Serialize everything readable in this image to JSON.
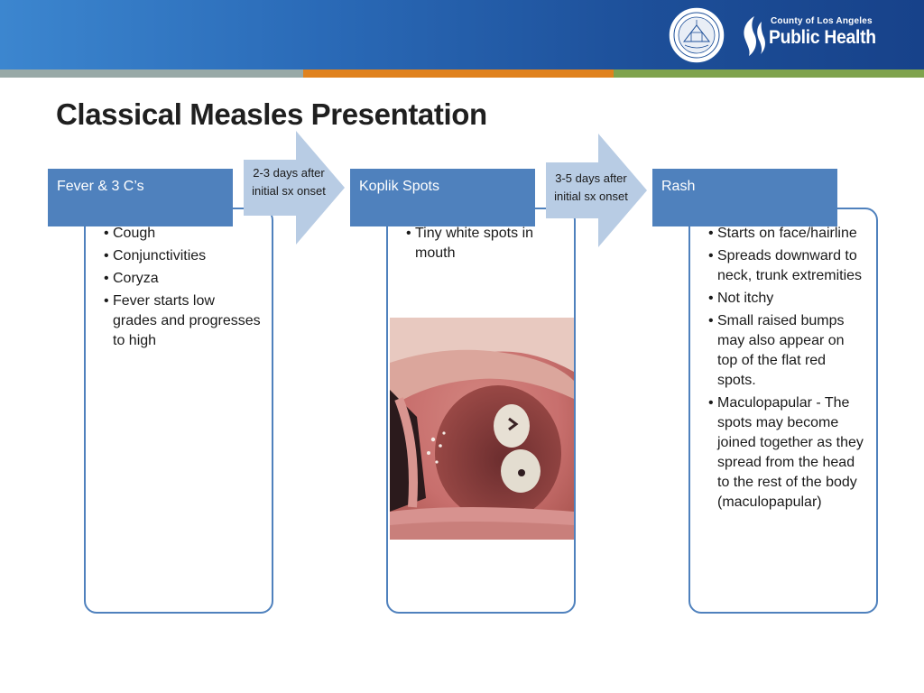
{
  "header": {
    "seal_icon": "county-seal-icon",
    "org_prefix": "County of Los Angeles",
    "org_name": "Public Health",
    "colors": {
      "banner": "#2a6ab7",
      "stripe_gray": "#98a9a7",
      "stripe_orange": "#e0821e",
      "stripe_green": "#7fa34d"
    }
  },
  "title": "Classical Measles Presentation",
  "stages": [
    {
      "name": "Fever & 3 C’s",
      "bullets": [
        "Cough",
        "Conjunctivities",
        "Coryza",
        "Fever starts low grades and progresses to high"
      ]
    },
    {
      "name": "Koplik Spots",
      "bullets": [
        "Tiny white spots in mouth"
      ]
    },
    {
      "name": "Rash",
      "bullets": [
        "Starts on face/hairline",
        "Spreads downward to neck, trunk extremities",
        "Not itchy",
        "Small raised bumps may also appear on top of the flat red spots.",
        "Maculopapular - The spots may become joined together as they spread from the head to the rest of the body (maculopapular)"
      ]
    }
  ],
  "transitions": [
    {
      "line1": "2-3 days after",
      "line2": "initial sx onset"
    },
    {
      "line1": "3-5 days after",
      "line2": "initial sx onset"
    }
  ],
  "colors": {
    "accent": "#4f81bd",
    "arrow": "#b8cce4"
  }
}
